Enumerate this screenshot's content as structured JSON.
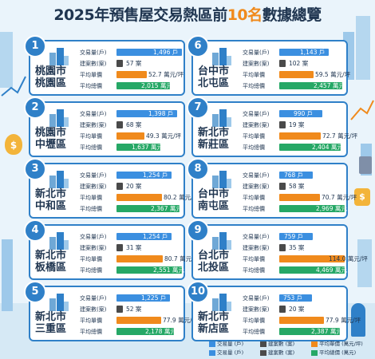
{
  "title": {
    "prefix": "2025年預售屋交易熱區前",
    "highlight": "10名",
    "suffix": "數據總覽"
  },
  "colors": {
    "volume": "#3b8fe0",
    "cases": "#4a4a4a",
    "price": "#f08a1c",
    "total": "#26a866",
    "card_border": "#2f80c8"
  },
  "labels": {
    "volume": "交易量(戶)",
    "cases": "建案數(案)",
    "price": "平均單價",
    "total": "平均總價"
  },
  "units": {
    "volume": "戶",
    "cases": "案",
    "price": "萬元/坪",
    "total": "萬元"
  },
  "districts": [
    {
      "rank": "1",
      "city": "桃園市",
      "area": "桃園區",
      "volume": "1,496",
      "cases": "57",
      "price": "52.7",
      "total": "2,015",
      "vol_frac": 1.0,
      "price_frac": 0.46,
      "total_frac": 0.82
    },
    {
      "rank": "2",
      "city": "桃園市",
      "area": "中壢區",
      "volume": "1,398",
      "cases": "68",
      "price": "49.3",
      "total": "1,637",
      "vol_frac": 0.93,
      "price_frac": 0.43,
      "total_frac": 0.67
    },
    {
      "rank": "3",
      "city": "新北市",
      "area": "中和區",
      "volume": "1,254",
      "cases": "20",
      "price": "80.2",
      "total": "2,367",
      "vol_frac": 0.84,
      "price_frac": 0.7,
      "total_frac": 0.96
    },
    {
      "rank": "4",
      "city": "新北市",
      "area": "板橋區",
      "volume": "1,254",
      "cases": "31",
      "price": "80.7",
      "total": "2,551",
      "vol_frac": 0.84,
      "price_frac": 0.71,
      "total_frac": 1.0
    },
    {
      "rank": "5",
      "city": "新北市",
      "area": "三重區",
      "volume": "1,225",
      "cases": "52",
      "price": "77.9",
      "total": "2,178",
      "vol_frac": 0.82,
      "price_frac": 0.68,
      "total_frac": 0.88
    },
    {
      "rank": "6",
      "city": "台中市",
      "area": "北屯區",
      "volume": "1,143",
      "cases": "102",
      "price": "59.5",
      "total": "2,457",
      "vol_frac": 0.76,
      "price_frac": 0.52,
      "total_frac": 0.96
    },
    {
      "rank": "7",
      "city": "新北市",
      "area": "新莊區",
      "volume": "990",
      "cases": "19",
      "price": "72.7",
      "total": "2,404",
      "vol_frac": 0.66,
      "price_frac": 0.64,
      "total_frac": 0.94
    },
    {
      "rank": "8",
      "city": "台中市",
      "area": "南屯區",
      "volume": "768",
      "cases": "58",
      "price": "70.7",
      "total": "2,969",
      "vol_frac": 0.51,
      "price_frac": 0.62,
      "total_frac": 1.0
    },
    {
      "rank": "9",
      "city": "台北市",
      "area": "北投區",
      "volume": "759",
      "cases": "35",
      "price": "114.0",
      "total": "4,469",
      "vol_frac": 0.51,
      "price_frac": 1.0,
      "total_frac": 1.0
    },
    {
      "rank": "10",
      "city": "新北市",
      "area": "新店區",
      "volume": "753",
      "cases": "20",
      "price": "77.9",
      "total": "2,387",
      "vol_frac": 0.5,
      "price_frac": 0.68,
      "total_frac": 0.93
    }
  ],
  "legend": [
    {
      "key": "volume",
      "text": "交易量 (戶)"
    },
    {
      "key": "cases",
      "text": "建案數 (案)"
    },
    {
      "key": "price",
      "text": "平均單價 (萬元/坪)"
    },
    {
      "key": "volume",
      "text": "交易量 (戶)"
    },
    {
      "key": "cases",
      "text": "建案數 (案)"
    },
    {
      "key": "total",
      "text": "平均總價 (萬元)"
    }
  ]
}
